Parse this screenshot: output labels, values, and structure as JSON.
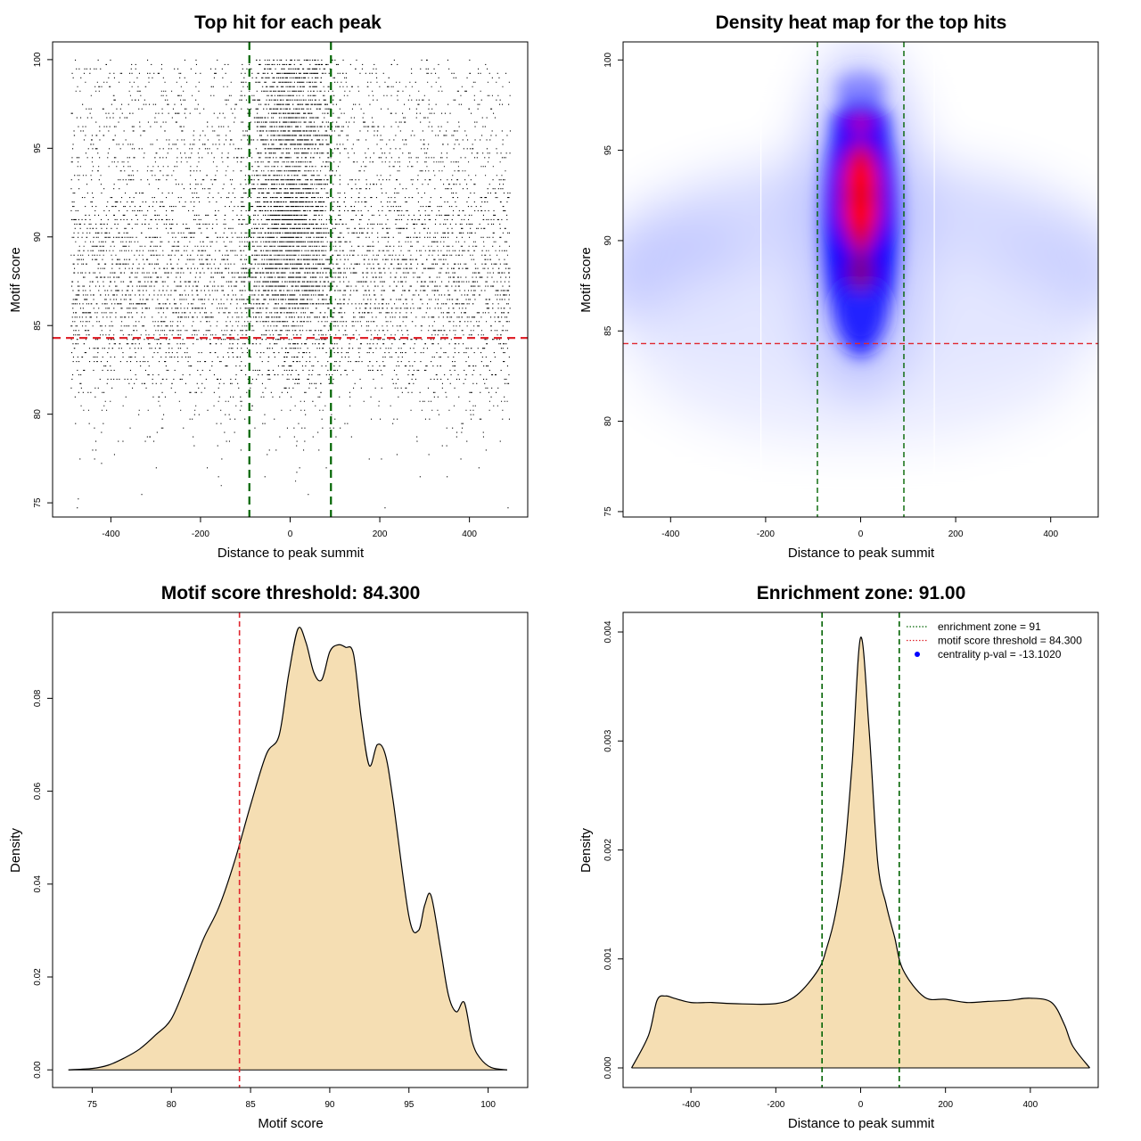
{
  "chart_data": [
    {
      "id": "scatter",
      "type": "scatter",
      "title": "Top hit for each peak",
      "xlabel": "Distance to peak summit",
      "ylabel": "Motif score",
      "xlim": [
        -530,
        530
      ],
      "ylim": [
        74.2,
        101
      ],
      "xticks": [
        -400,
        -200,
        0,
        200,
        400
      ],
      "yticks": [
        75,
        80,
        85,
        90,
        95,
        100
      ],
      "x_range_of_points": [
        -490,
        490
      ],
      "enrichment_zone": [
        -91,
        91
      ],
      "threshold": 84.3,
      "colors": {
        "points": "#000000",
        "zone": "#006400",
        "threshold": "#e0262e"
      }
    },
    {
      "id": "heatmap",
      "type": "heatmap",
      "title": "Density heat map for the top hits",
      "xlabel": "Distance to peak summit",
      "ylabel": "Motif score",
      "xlim": [
        -500,
        500
      ],
      "ylim": [
        74.7,
        101
      ],
      "xticks": [
        -400,
        -200,
        0,
        200,
        400
      ],
      "yticks": [
        75,
        80,
        85,
        90,
        95,
        100
      ],
      "enrichment_zone": [
        -91,
        91
      ],
      "threshold": 84.3,
      "hotspots": [
        {
          "x": 0,
          "y": 91.5,
          "level": "high"
        },
        {
          "x": 0,
          "y": 93.5,
          "level": "high"
        },
        {
          "x": 0,
          "y": 96.5,
          "level": "medium"
        },
        {
          "x": 0,
          "y": 98.4,
          "level": "low"
        }
      ],
      "colors": {
        "low": "#ffffff",
        "mid": "#0000ff",
        "high": "#ff0000",
        "zone": "#006400",
        "threshold": "#e0262e"
      }
    },
    {
      "id": "score-density",
      "type": "area",
      "title": "Motif score threshold: 84.300",
      "xlabel": "Motif score",
      "ylabel": "Density",
      "xlim": [
        72.5,
        102.5
      ],
      "ylim": [
        -0.0038,
        0.0985
      ],
      "xticks": [
        75,
        80,
        85,
        90,
        95,
        100
      ],
      "yticks": [
        0.0,
        0.02,
        0.04,
        0.06,
        0.08
      ],
      "ytick_labels": [
        "0.00",
        "0.02",
        "0.04",
        "0.06",
        "0.08"
      ],
      "x": [
        73.5,
        75,
        76,
        77,
        78,
        79,
        80,
        81,
        82,
        83,
        84,
        85,
        86,
        86.8,
        87.4,
        88,
        88.5,
        89,
        89.5,
        90,
        90.5,
        91,
        91.5,
        92,
        92.5,
        93,
        93.5,
        94,
        95,
        95.6,
        96,
        96.4,
        97,
        97.5,
        98,
        98.5,
        99,
        99.5,
        100.2,
        101.2
      ],
      "y": [
        0.0,
        0.0003,
        0.001,
        0.0025,
        0.0045,
        0.0075,
        0.011,
        0.019,
        0.028,
        0.035,
        0.045,
        0.057,
        0.068,
        0.072,
        0.085,
        0.095,
        0.092,
        0.0855,
        0.084,
        0.09,
        0.0915,
        0.091,
        0.0895,
        0.0755,
        0.0655,
        0.07,
        0.068,
        0.058,
        0.033,
        0.03,
        0.0355,
        0.0375,
        0.026,
        0.016,
        0.0125,
        0.0145,
        0.006,
        0.0025,
        0.0005,
        0.0
      ],
      "threshold": 84.3,
      "colors": {
        "fill": "#f5deb3",
        "line": "#000000",
        "threshold": "#e0262e"
      }
    },
    {
      "id": "distance-density",
      "type": "area",
      "title": "Enrichment zone: 91.00",
      "xlabel": "Distance to peak summit",
      "ylabel": "Density",
      "xlim": [
        -560,
        560
      ],
      "ylim": [
        -0.00018,
        0.00418
      ],
      "xticks": [
        -400,
        -200,
        0,
        200,
        400
      ],
      "yticks": [
        0.0,
        0.001,
        0.002,
        0.003,
        0.004
      ],
      "ytick_labels": [
        "0.000",
        "0.001",
        "0.002",
        "0.003",
        "0.004"
      ],
      "x": [
        -540,
        -500,
        -480,
        -460,
        -440,
        -400,
        -350,
        -300,
        -200,
        -150,
        -100,
        -80,
        -60,
        -40,
        -20,
        0,
        20,
        40,
        60,
        80,
        100,
        150,
        200,
        250,
        300,
        350,
        400,
        450,
        480,
        500,
        540
      ],
      "y": [
        0.0,
        0.0003,
        0.00062,
        0.00066,
        0.00064,
        0.0006,
        0.0006,
        0.00059,
        0.00059,
        0.00067,
        0.0009,
        0.0011,
        0.0014,
        0.0019,
        0.0028,
        0.00395,
        0.0031,
        0.0019,
        0.0015,
        0.0012,
        0.0009,
        0.00065,
        0.00063,
        0.0006,
        0.00061,
        0.00062,
        0.00064,
        0.0006,
        0.0004,
        0.0002,
        0.0
      ],
      "enrichment_zone": [
        -91,
        91
      ],
      "legend": [
        {
          "label": "enrichment zone = 91",
          "kind": "dotted-line",
          "color": "#006400"
        },
        {
          "label": "motif score threshold = 84.300",
          "kind": "dotted-line",
          "color": "#e0262e"
        },
        {
          "label": "centrality p-val = -13.1020",
          "kind": "dot",
          "color": "#0000ff"
        }
      ],
      "legend_position": "top-right",
      "colors": {
        "fill": "#f5deb3",
        "line": "#000000",
        "zone": "#006400"
      }
    }
  ]
}
